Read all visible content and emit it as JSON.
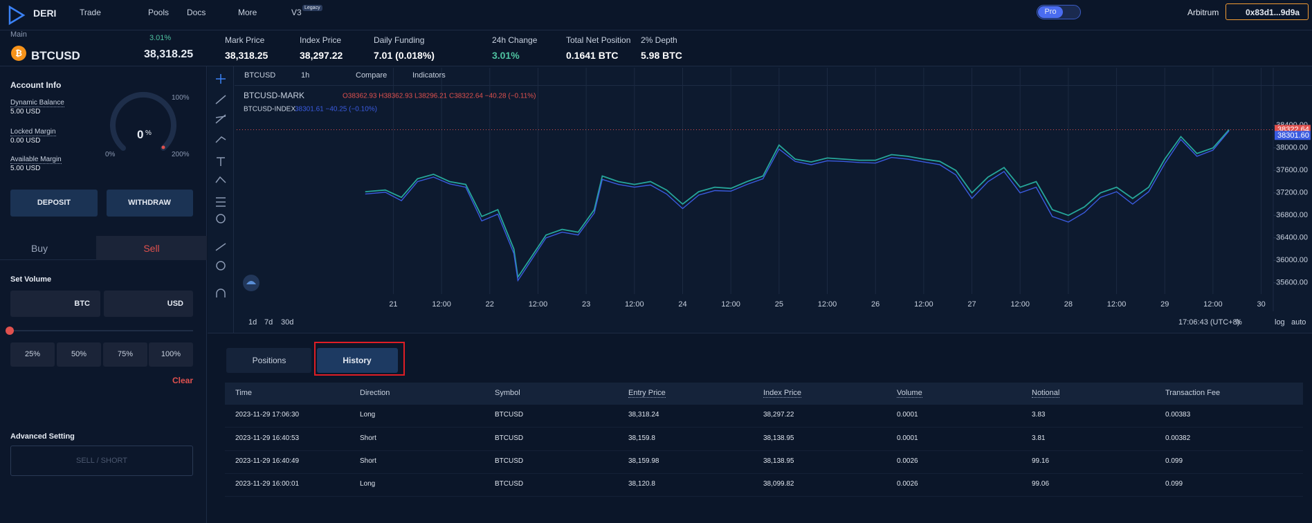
{
  "header": {
    "logo": "DERI",
    "nav": [
      "Trade",
      "Pools",
      "Docs",
      "More",
      "V3"
    ],
    "legacy_badge": "Legacy",
    "pro": "Pro",
    "network": "Arbitrum",
    "wallet": "0x83d1...9d9a"
  },
  "market": {
    "label": "Main",
    "symbol": "BTCUSD",
    "change": "3.01%",
    "price": "38,318.25",
    "stats": [
      {
        "label": "Mark Price",
        "value": "38,318.25"
      },
      {
        "label": "Index Price",
        "value": "38,297.22"
      },
      {
        "label": "Daily Funding",
        "value": "7.01 (0.018%)"
      },
      {
        "label": "24h Change",
        "value": "3.01%"
      },
      {
        "label": "Total Net Position",
        "value": "0.1641 BTC"
      },
      {
        "label": "2% Depth",
        "value": "5.98 BTC"
      }
    ]
  },
  "account": {
    "title": "Account Info",
    "items": [
      {
        "label": "Dynamic Balance",
        "value": "5.00 USD"
      },
      {
        "label": "Locked Margin",
        "value": "0.00 USD"
      },
      {
        "label": "Available Margin",
        "value": "5.00 USD"
      }
    ],
    "gauge": {
      "value": "0",
      "unit": "%",
      "min": "0%",
      "mid": "100%",
      "max": "200%"
    },
    "deposit": "DEPOSIT",
    "withdraw": "WITHDRAW"
  },
  "trade": {
    "tabs": [
      "Buy",
      "Sell"
    ],
    "set_volume": "Set Volume",
    "units": [
      "BTC",
      "USD"
    ],
    "presets": [
      "25%",
      "50%",
      "75%",
      "100%"
    ],
    "clear": "Clear",
    "advanced": "Advanced Setting",
    "submit": "SELL / SHORT"
  },
  "chart_toolbar": {
    "symbol": "BTCUSD",
    "interval": "1h",
    "compare": "Compare",
    "indicators": "Indicators"
  },
  "chart_data": {
    "type": "line",
    "x": [
      -7,
      -2,
      2,
      6,
      10,
      14,
      18,
      22,
      26,
      30,
      31,
      38,
      42,
      46,
      50,
      52,
      56,
      60,
      64,
      68,
      72,
      76,
      80,
      84,
      88,
      92,
      96,
      100,
      104,
      108,
      112,
      116,
      120,
      124,
      128,
      132,
      136,
      140,
      144,
      148,
      152,
      156,
      160,
      164,
      168,
      172,
      176,
      180,
      184,
      188,
      192,
      196,
      200,
      204,
      208
    ],
    "series": [
      {
        "name": "BTCUSD-MARK",
        "color": "#26a69a",
        "legend": "O38362.93 H38362.93 L38296.21 C38322.64 −40.28 (−0.11%)",
        "values": [
          37220,
          37250,
          37120,
          37450,
          37530,
          37400,
          37350,
          36780,
          36900,
          36200,
          35700,
          36450,
          36550,
          36500,
          36900,
          37500,
          37400,
          37350,
          37400,
          37250,
          37000,
          37220,
          37300,
          37280,
          37400,
          37500,
          38050,
          37800,
          37750,
          37820,
          37800,
          37780,
          37780,
          37880,
          37850,
          37800,
          37760,
          37600,
          37200,
          37480,
          37650,
          37300,
          37400,
          36900,
          36800,
          36950,
          37200,
          37300,
          37100,
          37300,
          37800,
          38200,
          37900,
          38000,
          38322.64
        ]
      },
      {
        "name": "BTCUSD-INDEX",
        "color": "#3a5be0",
        "legend": "38301.61 −40.25 (−0.10%)",
        "values": [
          37180,
          37210,
          37060,
          37400,
          37480,
          37360,
          37300,
          36700,
          36820,
          36120,
          35640,
          36400,
          36500,
          36450,
          36840,
          37440,
          37350,
          37300,
          37340,
          37180,
          36920,
          37160,
          37240,
          37230,
          37350,
          37450,
          37980,
          37760,
          37700,
          37770,
          37760,
          37740,
          37730,
          37830,
          37800,
          37750,
          37700,
          37520,
          37100,
          37400,
          37580,
          37200,
          37300,
          36780,
          36680,
          36850,
          37120,
          37220,
          37000,
          37220,
          37720,
          38150,
          37850,
          37960,
          38301.6
        ]
      }
    ],
    "price_tags": [
      {
        "value": 38322.64,
        "label": "38322.64"
      },
      {
        "value": 38301.6,
        "label": "38301.60"
      }
    ],
    "xlim": [
      -39,
      219
    ],
    "ylim": [
      35400,
      39080
    ],
    "xticks": [
      {
        "value": 0,
        "label": "21"
      },
      {
        "value": 12,
        "label": "12:00"
      },
      {
        "value": 24,
        "label": "22"
      },
      {
        "value": 36,
        "label": "12:00"
      },
      {
        "value": 48,
        "label": "23"
      },
      {
        "value": 60,
        "label": "12:00"
      },
      {
        "value": 72,
        "label": "24"
      },
      {
        "value": 84,
        "label": "12:00"
      },
      {
        "value": 96,
        "label": "25"
      },
      {
        "value": 108,
        "label": "12:00"
      },
      {
        "value": 120,
        "label": "26"
      },
      {
        "value": 132,
        "label": "12:00"
      },
      {
        "value": 144,
        "label": "27"
      },
      {
        "value": 156,
        "label": "12:00"
      },
      {
        "value": 168,
        "label": "28"
      },
      {
        "value": 180,
        "label": "12:00"
      },
      {
        "value": 192,
        "label": "29"
      },
      {
        "value": 204,
        "label": "12:00"
      },
      {
        "value": 216,
        "label": "30"
      }
    ],
    "yticks": [
      {
        "value": 38400,
        "label": "38400.00"
      },
      {
        "value": 38000,
        "label": "38000.00"
      },
      {
        "value": 37600,
        "label": "37600.00"
      },
      {
        "value": 37200,
        "label": "37200.00"
      },
      {
        "value": 36800,
        "label": "36800.00"
      },
      {
        "value": 36400,
        "label": "36400.00"
      },
      {
        "value": 36000,
        "label": "36000.00"
      },
      {
        "value": 35600,
        "label": "35600.00"
      }
    ],
    "grid": true
  },
  "chart_footer": {
    "ranges": [
      "1d",
      "7d",
      "30d"
    ],
    "time": "17:06:43 (UTC+8)",
    "options": [
      "%",
      "log",
      "auto"
    ]
  },
  "tabs": [
    "Positions",
    "History"
  ],
  "table": {
    "columns": [
      "Time",
      "Direction",
      "Symbol",
      "Entry Price",
      "Index Price",
      "Volume",
      "Notional",
      "Transaction Fee"
    ],
    "rows": [
      [
        "2023-11-29 17:06:30",
        "Long",
        "BTCUSD",
        "38,318.24",
        "38,297.22",
        "0.0001",
        "3.83",
        "0.00383"
      ],
      [
        "2023-11-29 16:40:53",
        "Short",
        "BTCUSD",
        "38,159.8",
        "38,138.95",
        "0.0001",
        "3.81",
        "0.00382"
      ],
      [
        "2023-11-29 16:40:49",
        "Short",
        "BTCUSD",
        "38,159.98",
        "38,138.95",
        "0.0026",
        "99.16",
        "0.099"
      ],
      [
        "2023-11-29 16:00:01",
        "Long",
        "BTCUSD",
        "38,120.8",
        "38,099.82",
        "0.0026",
        "99.06",
        "0.099"
      ]
    ]
  }
}
